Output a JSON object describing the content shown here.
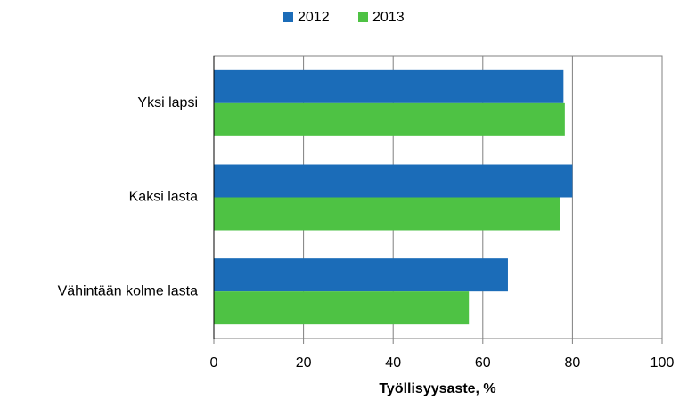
{
  "chart_data": {
    "type": "hbar",
    "categories": [
      "Yksi lapsi",
      "Kaksi lasta",
      "Vähintään kolme lasta"
    ],
    "series": [
      {
        "name": "2012",
        "color": "#1b6cb8",
        "values": [
          78,
          80,
          65.6
        ]
      },
      {
        "name": "2013",
        "color": "#4ec244",
        "values": [
          78.3,
          77.3,
          56.9
        ]
      }
    ],
    "xlabel": "Työllisyysaste, %",
    "xlim": [
      0,
      100
    ],
    "xticks": [
      0,
      20,
      40,
      60,
      80,
      100
    ],
    "grid": true,
    "legend": "top"
  }
}
